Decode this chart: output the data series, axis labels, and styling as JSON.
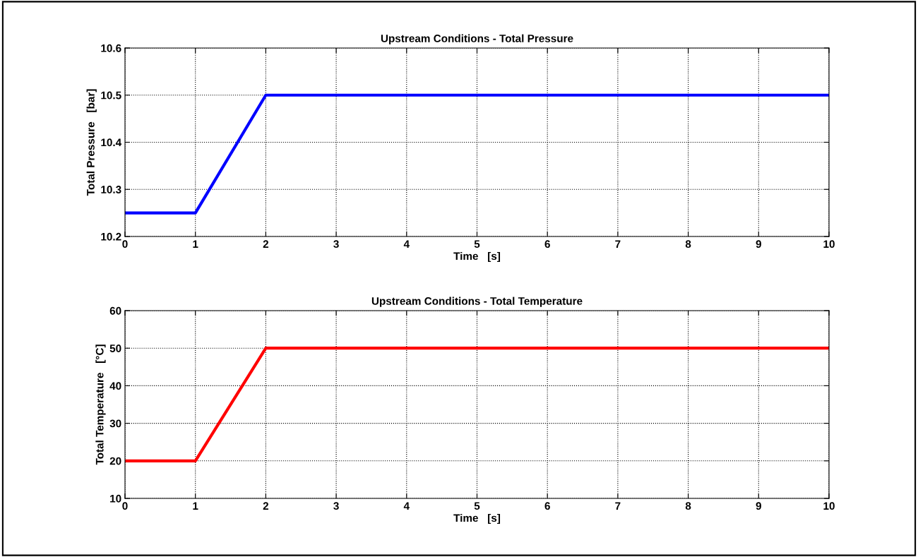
{
  "chart_data": [
    {
      "type": "line",
      "title": "Upstream Conditions - Total Pressure",
      "xlabel": "Time   [s]",
      "ylabel": "Total Pressure   [bar]",
      "x": [
        0,
        1,
        2,
        10
      ],
      "series": [
        {
          "color": "#0000ff",
          "values": [
            10.25,
            10.25,
            10.5,
            10.5
          ]
        }
      ],
      "xlim": [
        0,
        10
      ],
      "xticks": [
        0,
        1,
        2,
        3,
        4,
        5,
        6,
        7,
        8,
        9,
        10
      ],
      "ylim": [
        10.2,
        10.6
      ],
      "yticks": [
        10.2,
        10.3,
        10.4,
        10.5,
        10.6
      ],
      "grid": true,
      "legend": false,
      "marker": "none",
      "line_style": "solid"
    },
    {
      "type": "line",
      "title": "Upstream Conditions - Total Temperature",
      "xlabel": "Time   [s]",
      "ylabel": "Total Temperature   [°C]",
      "x": [
        0,
        1,
        2,
        10
      ],
      "series": [
        {
          "color": "#ff0000",
          "values": [
            20,
            20,
            50,
            50
          ]
        }
      ],
      "xlim": [
        0,
        10
      ],
      "xticks": [
        0,
        1,
        2,
        3,
        4,
        5,
        6,
        7,
        8,
        9,
        10
      ],
      "ylim": [
        10,
        60
      ],
      "yticks": [
        10,
        20,
        30,
        40,
        50,
        60
      ],
      "grid": true,
      "legend": false,
      "marker": "none",
      "line_style": "solid"
    }
  ]
}
